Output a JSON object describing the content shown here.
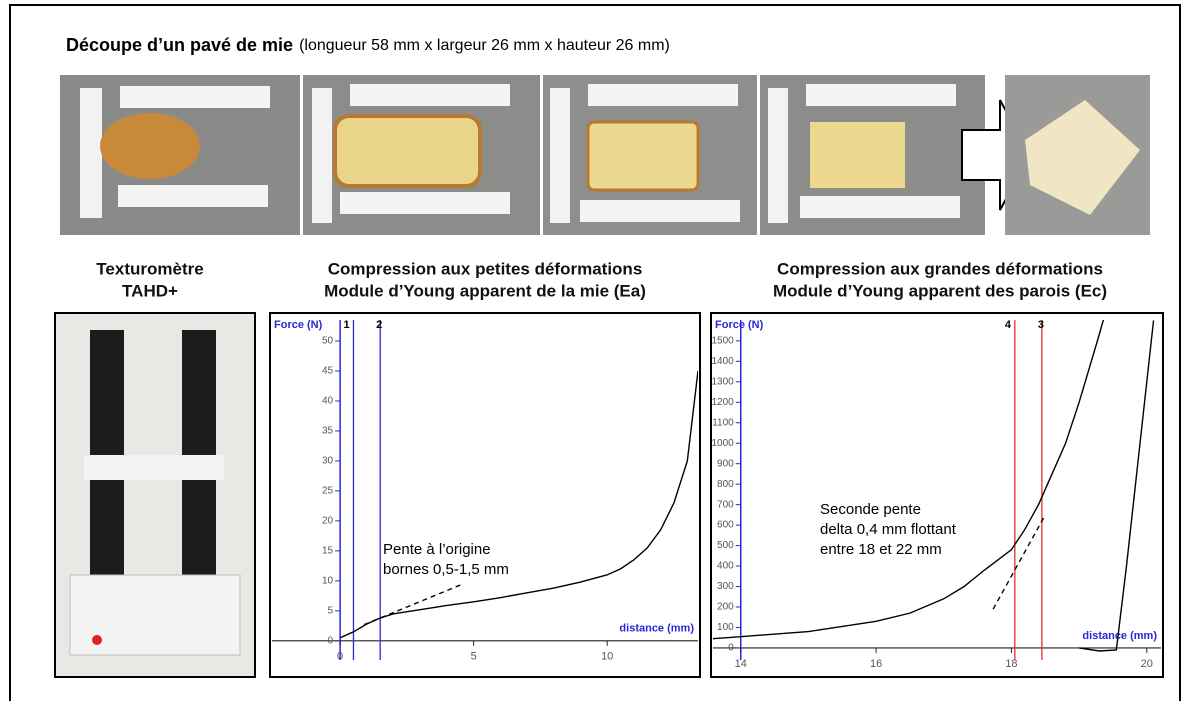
{
  "header": {
    "title_bold": "Découpe d’un pavé de mie",
    "title_rest": "(longueur 58 mm x largeur 26 mm x hauteur 26 mm)"
  },
  "captions": [
    [
      "Texturomètre",
      "TAHD+"
    ],
    [
      "Compression aux petites déformations",
      "Module d’Young apparent de la mie (Ea)"
    ],
    [
      "Compression aux grandes déformations",
      "Module d’Young apparent des parois (Ec)"
    ]
  ],
  "chart_data": [
    {
      "type": "line",
      "y_label": "Force (N)",
      "x_label": "distance (mm)",
      "xlim": [
        -2.55,
        13.4
      ],
      "ylim": [
        -3.2,
        53.5
      ],
      "xticks": [
        0,
        5,
        10
      ],
      "yticks": [
        0,
        5,
        10,
        15,
        20,
        25,
        30,
        35,
        40,
        45,
        50
      ],
      "series": [
        {
          "color": "#000000",
          "x": [
            0,
            0.5,
            1,
            1.5,
            2,
            3,
            4,
            5,
            6,
            7,
            8,
            9,
            10,
            10.5,
            11,
            11.5,
            12,
            12.5,
            13,
            13.4
          ],
          "values": [
            0.5,
            1.5,
            2.8,
            3.8,
            4.5,
            5.2,
            5.9,
            6.5,
            7.2,
            8,
            8.8,
            9.8,
            11,
            12,
            13.5,
            15.5,
            18.5,
            23,
            30,
            45
          ]
        },
        {
          "color": "#000000",
          "dashed": true,
          "x": [
            0.9,
            4.5
          ],
          "values": [
            2.7,
            9.3
          ]
        }
      ],
      "markers": [
        {
          "label": "1",
          "x": 0.5,
          "color": "#2828d8"
        },
        {
          "label": "2",
          "x": 1.5,
          "color": "#2828d8"
        }
      ],
      "annotation": [
        "Pente à l’origine",
        "bornes 0,5-1,5 mm"
      ]
    },
    {
      "type": "line",
      "y_label": "Force (N)",
      "x_label": "distance (mm)",
      "xlim": [
        13.59,
        20.21
      ],
      "ylim": [
        -59,
        1602
      ],
      "xticks": [
        14,
        16,
        18,
        20
      ],
      "yticks": [
        0,
        100,
        200,
        300,
        400,
        500,
        600,
        700,
        800,
        900,
        1000,
        1100,
        1200,
        1300,
        1400,
        1500
      ],
      "series": [
        {
          "color": "#000000",
          "x": [
            13.59,
            14,
            15,
            16,
            16.5,
            17,
            17.3,
            17.6,
            17.8,
            18,
            18.2,
            18.4,
            18.6,
            18.8,
            19,
            19.27,
            19.4
          ],
          "values": [
            45,
            55,
            80,
            130,
            170,
            240,
            300,
            380,
            430,
            480,
            580,
            700,
            850,
            1000,
            1200,
            1500,
            1650
          ]
        },
        {
          "color": "#000000",
          "x": [
            19,
            19.3,
            19.55,
            19.7,
            19.9,
            20.1
          ],
          "values": [
            0,
            -15,
            -10,
            400,
            1000,
            1600
          ]
        },
        {
          "color": "#000000",
          "dashed": true,
          "x": [
            17.73,
            18.5
          ],
          "values": [
            190,
            650
          ]
        }
      ],
      "markers": [
        {
          "label": "4",
          "x": 18.05,
          "color": "#e03030"
        },
        {
          "label": "3",
          "x": 18.45,
          "color": "#e03030"
        }
      ],
      "annotation": [
        "Seconde pente",
        "delta 0,4 mm flottant",
        "entre 18 et 22 mm"
      ]
    }
  ]
}
